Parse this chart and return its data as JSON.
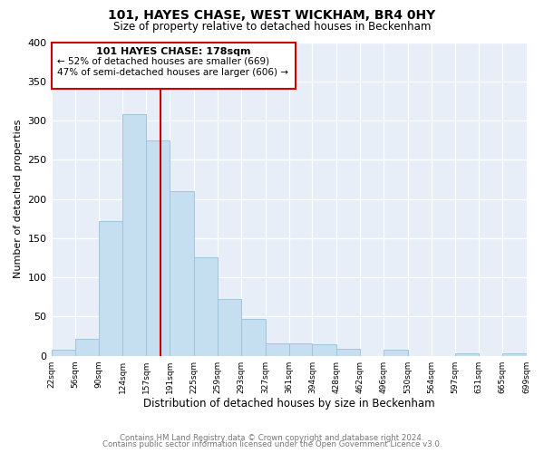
{
  "title1": "101, HAYES CHASE, WEST WICKHAM, BR4 0HY",
  "title2": "Size of property relative to detached houses in Beckenham",
  "xlabel": "Distribution of detached houses by size in Beckenham",
  "ylabel": "Number of detached properties",
  "bar_edges": [
    22,
    56,
    90,
    124,
    157,
    191,
    225,
    259,
    293,
    327,
    361,
    394,
    428,
    462,
    496,
    530,
    564,
    597,
    631,
    665,
    699
  ],
  "bar_heights": [
    8,
    22,
    172,
    308,
    275,
    210,
    126,
    73,
    47,
    16,
    16,
    15,
    9,
    0,
    8,
    0,
    0,
    3,
    0,
    3
  ],
  "bar_color": "#c6dff0",
  "bar_edgecolor": "#a0c4dc",
  "vline_x": 178,
  "vline_color": "#cc0000",
  "annotation_title": "101 HAYES CHASE: 178sqm",
  "annotation_line1": "← 52% of detached houses are smaller (669)",
  "annotation_line2": "47% of semi-detached houses are larger (606) →",
  "annotation_box_color": "#cc0000",
  "ylim": [
    0,
    400
  ],
  "yticks": [
    0,
    50,
    100,
    150,
    200,
    250,
    300,
    350,
    400
  ],
  "xtick_labels": [
    "22sqm",
    "56sqm",
    "90sqm",
    "124sqm",
    "157sqm",
    "191sqm",
    "225sqm",
    "259sqm",
    "293sqm",
    "327sqm",
    "361sqm",
    "394sqm",
    "428sqm",
    "462sqm",
    "496sqm",
    "530sqm",
    "564sqm",
    "597sqm",
    "631sqm",
    "665sqm",
    "699sqm"
  ],
  "footer1": "Contains HM Land Registry data © Crown copyright and database right 2024.",
  "footer2": "Contains public sector information licensed under the Open Government Licence v3.0.",
  "plot_bg_color": "#e8eef8",
  "fig_bg_color": "#ffffff"
}
